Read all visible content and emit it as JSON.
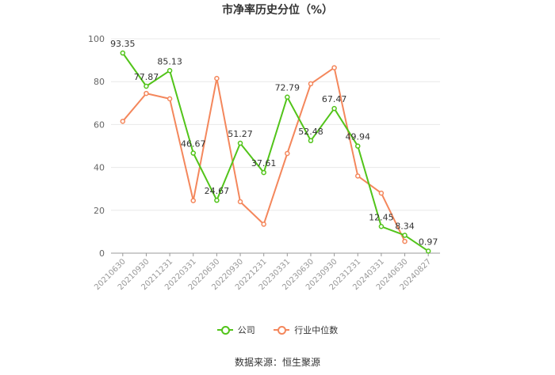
{
  "chart_data": {
    "type": "line",
    "title": "市净率历史分位（%）",
    "categories": [
      "20210630",
      "20210930",
      "20211231",
      "20220331",
      "20220630",
      "20220930",
      "20221231",
      "20230331",
      "20230630",
      "20230930",
      "20231231",
      "20240331",
      "20240630",
      "20240827"
    ],
    "ylim": [
      0,
      100
    ],
    "yticks": [
      "0",
      "20",
      "40",
      "60",
      "80",
      "100"
    ],
    "grid": true,
    "legend_position": "bottom",
    "series": [
      {
        "name": "公司",
        "color": "#52c41a",
        "values": [
          93.35,
          77.87,
          85.13,
          46.67,
          24.67,
          51.27,
          37.61,
          72.79,
          52.48,
          67.47,
          49.94,
          12.45,
          8.34,
          0.97
        ],
        "labels": [
          "93.35",
          "77.87",
          "85.13",
          "46.67",
          "24.67",
          "51.27",
          "37.61",
          "72.79",
          "52.48",
          "67.47",
          "49.94",
          "12.45",
          "8.34",
          "0.97"
        ]
      },
      {
        "name": "行业中位数",
        "color": "#f4875c",
        "values": [
          61.5,
          74.5,
          72,
          24.5,
          81.5,
          24,
          13.5,
          46.5,
          79,
          86.5,
          36,
          28,
          5.5,
          null
        ]
      }
    ]
  },
  "source": "数据来源：恒生聚源"
}
